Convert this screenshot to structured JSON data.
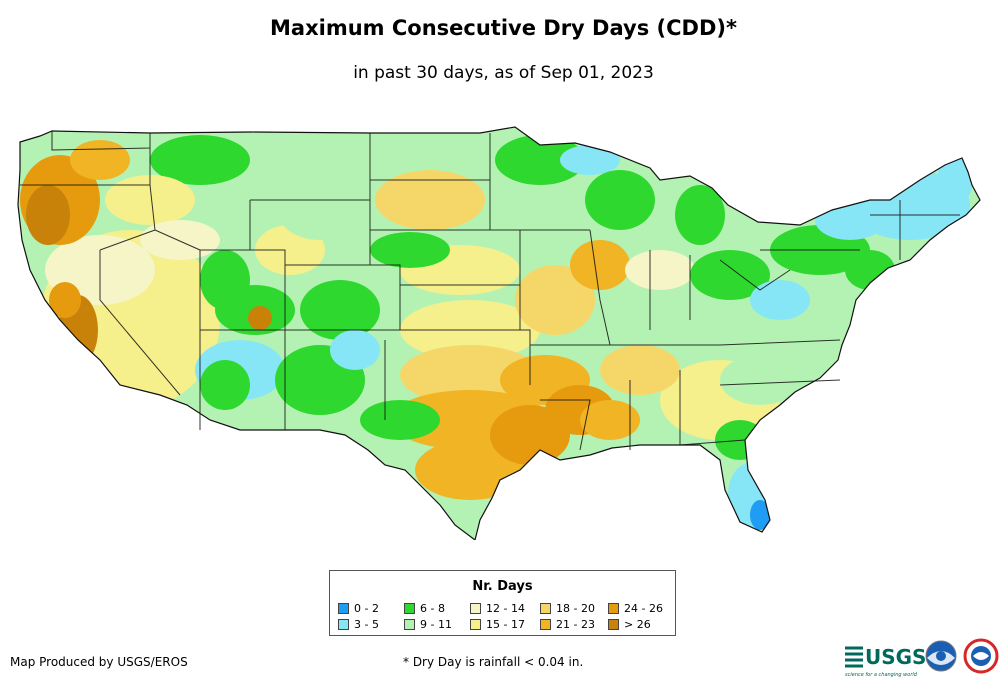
{
  "title": "Maximum Consecutive Dry Days (CDD)*",
  "subtitle": "in past 30 days, as of Sep 01, 2023",
  "legend": {
    "title": "Nr. Days",
    "items": [
      {
        "label": "0 - 2",
        "color": "#1f9df5"
      },
      {
        "label": "3 - 5",
        "color": "#87e6f5"
      },
      {
        "label": "6 - 8",
        "color": "#2fd82f"
      },
      {
        "label": "9 - 11",
        "color": "#b4f2b4"
      },
      {
        "label": "12 - 14",
        "color": "#f5f5c8"
      },
      {
        "label": "15 - 17",
        "color": "#f5f08c"
      },
      {
        "label": "18 - 20",
        "color": "#f5d769"
      },
      {
        "label": "21 - 23",
        "color": "#f0b424"
      },
      {
        "label": "24 - 26",
        "color": "#e69b0f"
      },
      {
        "label": "> 26",
        "color": "#c8820a"
      }
    ]
  },
  "credit": "Map Produced by USGS/EROS",
  "footnote": "* Dry Day is rainfall < 0.04 in.",
  "logos": {
    "usgs": "USGS",
    "usgs_tagline": "science for a changing world"
  }
}
